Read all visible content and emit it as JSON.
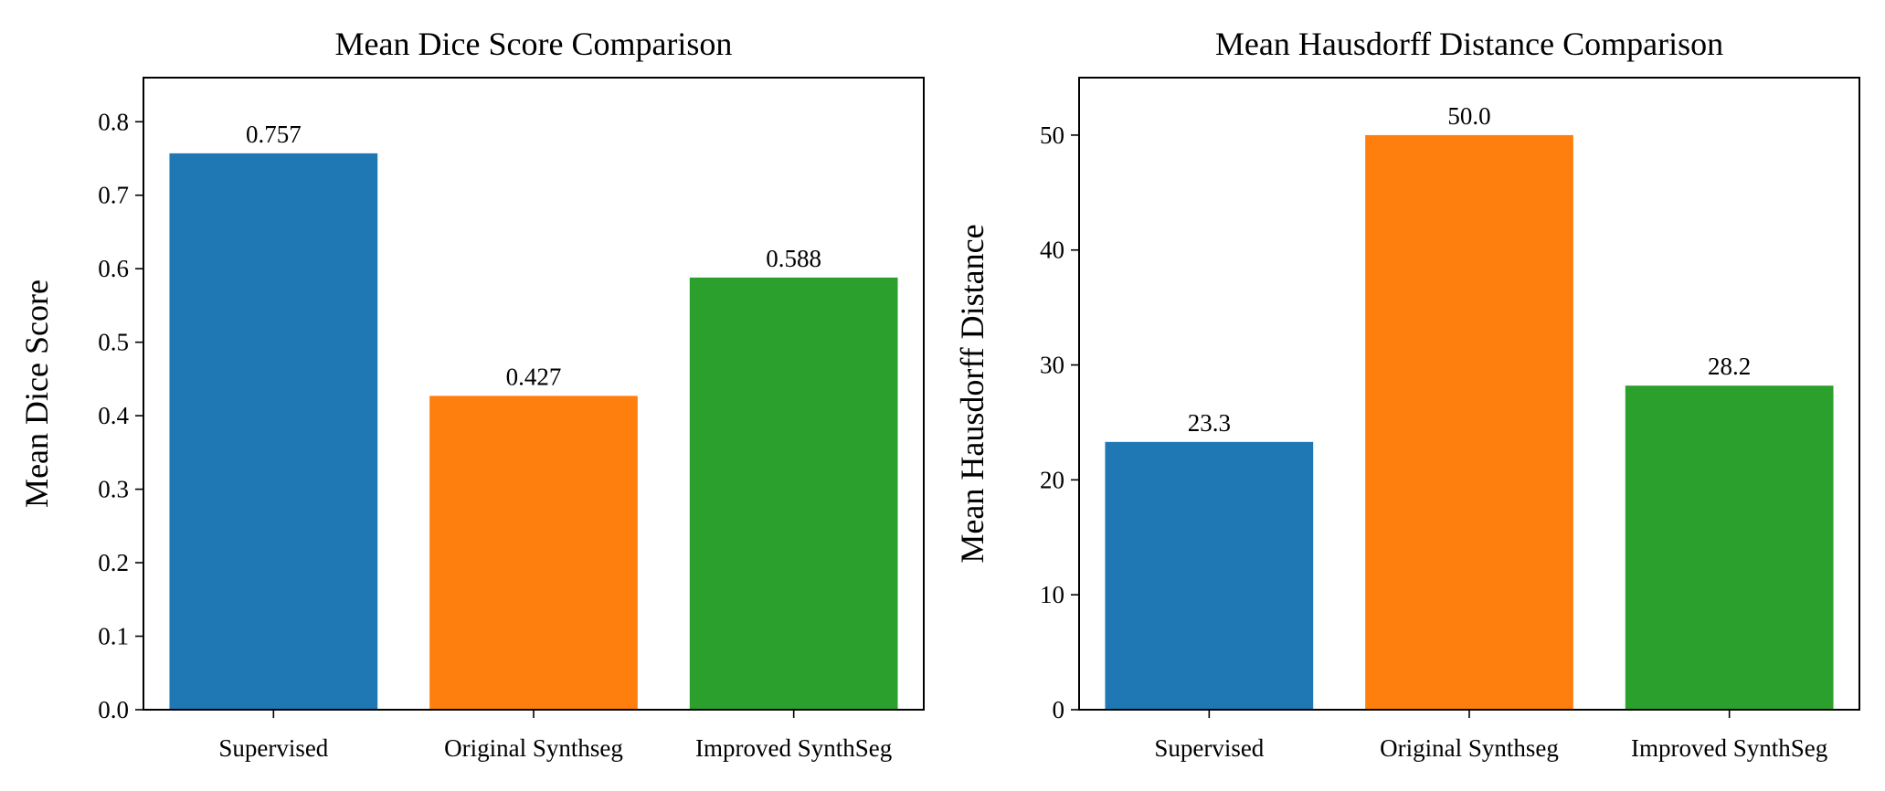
{
  "chart_data": [
    {
      "type": "bar",
      "title": "Mean Dice Score Comparison",
      "xlabel": "",
      "ylabel": "Mean Dice Score",
      "categories": [
        "Supervised",
        "Original Synthseg",
        "Improved SynthSeg"
      ],
      "values": [
        0.757,
        0.427,
        0.588
      ],
      "value_labels": [
        "0.757",
        "0.427",
        "0.588"
      ],
      "colors": [
        "#1f77b4",
        "#ff7f0e",
        "#2ca02c"
      ],
      "ylim": [
        0,
        0.86
      ],
      "yticks": [
        0.0,
        0.1,
        0.2,
        0.3,
        0.4,
        0.5,
        0.6,
        0.7,
        0.8
      ],
      "ytick_labels": [
        "0.0",
        "0.1",
        "0.2",
        "0.3",
        "0.4",
        "0.5",
        "0.6",
        "0.7",
        "0.8"
      ],
      "grid": false,
      "legend": "none"
    },
    {
      "type": "bar",
      "title": "Mean Hausdorff Distance Comparison",
      "xlabel": "",
      "ylabel": "Mean Hausdorff Distance",
      "categories": [
        "Supervised",
        "Original Synthseg",
        "Improved SynthSeg"
      ],
      "values": [
        23.3,
        50.0,
        28.2
      ],
      "value_labels": [
        "23.3",
        "50.0",
        "28.2"
      ],
      "colors": [
        "#1f77b4",
        "#ff7f0e",
        "#2ca02c"
      ],
      "ylim": [
        0,
        55
      ],
      "yticks": [
        0,
        10,
        20,
        30,
        40,
        50
      ],
      "ytick_labels": [
        "0",
        "10",
        "20",
        "30",
        "40",
        "50"
      ],
      "grid": false,
      "legend": "none"
    }
  ]
}
